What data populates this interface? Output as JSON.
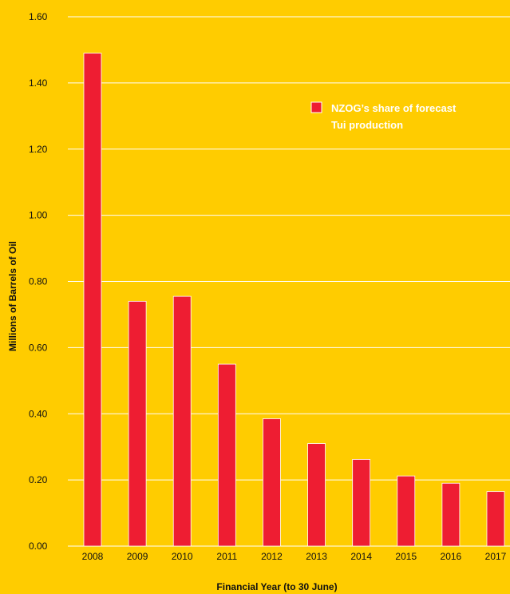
{
  "chart_data": {
    "type": "bar",
    "title": "",
    "categories": [
      "2008",
      "2009",
      "2010",
      "2011",
      "2012",
      "2013",
      "2014",
      "2015",
      "2016",
      "2017"
    ],
    "series": [
      {
        "name": "NZOG’s share of forecast Tui production",
        "values": [
          1.49,
          0.74,
          0.755,
          0.55,
          0.385,
          0.31,
          0.262,
          0.212,
          0.19,
          0.165
        ],
        "color": "#EE1D32"
      }
    ],
    "xlabel": "Financial Year (to 30 June)",
    "ylabel": "Millions of Barrels of Oil",
    "ylim": [
      0,
      1.6
    ],
    "yticks": [
      "0.00",
      "0.20",
      "0.40",
      "0.60",
      "0.80",
      "1.00",
      "1.20",
      "1.40",
      "1.60"
    ],
    "grid": true,
    "legend_position": "top-right",
    "legend_lines": [
      "NZOG’s share of forecast",
      "Tui production"
    ],
    "colors": {
      "background": "#FFCC00",
      "gridline": "#ffffff",
      "bar": "#EE1D32",
      "text": "#111111",
      "legend_text": "#ffffff"
    }
  }
}
